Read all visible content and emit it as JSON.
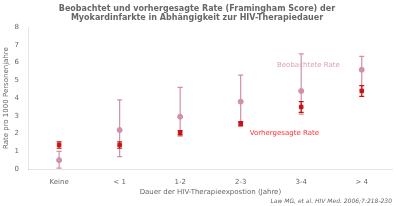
{
  "chart_data": {
    "type": "scatter",
    "title": [
      "Beobachtet und vorhergesagte Rate (Framingham Score) der",
      "Myokardinfarkte in Abhängigkeit zur HIV-Therapiedauer"
    ],
    "xlabel": "Dauer der HIV-Therapieexpostion (Jahre)",
    "ylabel": "Rate pro 1000 Personenjahre",
    "citation": "Law MG, et al. HIV Med. 2006;7:218-230",
    "categories": [
      "Keine",
      "< 1",
      "1-2",
      "2-3",
      "3-4",
      "> 4"
    ],
    "series": [
      {
        "name": "Beobachtete Rate",
        "color": "#d090a8",
        "marker": "circle",
        "line_style": "none",
        "values": [
          0.5,
          2.2,
          2.95,
          3.8,
          4.4,
          5.6
        ],
        "yerr_low": [
          0.45,
          1.5,
          1.1,
          1.15,
          1.3,
          1.1
        ],
        "yerr_high": [
          0.5,
          1.7,
          1.65,
          1.5,
          2.1,
          0.75
        ]
      },
      {
        "name": "Vorhergesagte Rate",
        "color": "#cc1111",
        "marker": "square",
        "line_style": "none",
        "values": [
          1.35,
          1.35,
          2.05,
          2.55,
          3.5,
          4.4
        ],
        "yerr_low": [
          0.18,
          0.18,
          0.12,
          0.12,
          0.3,
          0.3
        ],
        "yerr_high": [
          0.18,
          0.18,
          0.12,
          0.12,
          0.3,
          0.3
        ]
      }
    ],
    "annotations": [
      {
        "text": "Beobachtete Rate",
        "x": 3.6,
        "y": 5.85,
        "color": "#d8a0b8"
      },
      {
        "text": "Vorhergesagte Rate",
        "x": 3.15,
        "y": 2.0,
        "color": "#ff3333"
      }
    ],
    "ylim": [
      0,
      8
    ],
    "yticks": [
      0,
      1,
      2,
      3,
      4,
      5,
      6,
      7,
      8
    ],
    "grid": false,
    "legend": "none"
  }
}
